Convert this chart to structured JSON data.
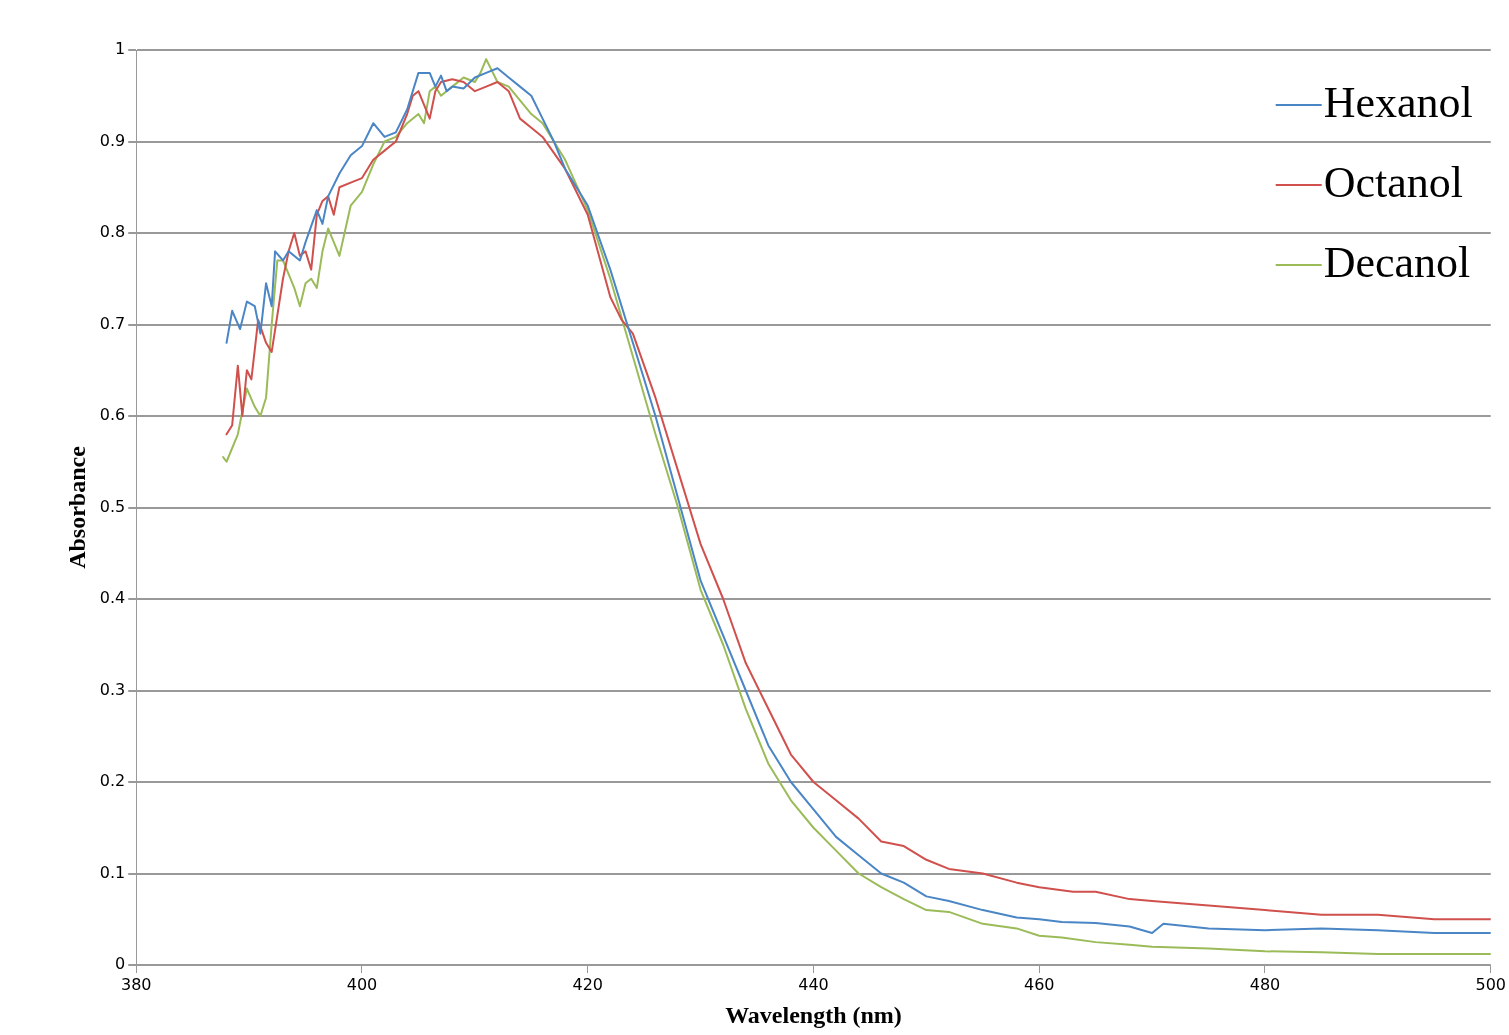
{
  "chart_data": {
    "type": "line",
    "xlabel": "Wavelength (nm)",
    "ylabel": "Absorbance",
    "xlim": [
      380,
      500
    ],
    "xticks": [
      380,
      400,
      420,
      440,
      460,
      480,
      500
    ],
    "ylim": [
      0,
      1
    ],
    "yticks": [
      0,
      0.1,
      0.2,
      0.3,
      0.4,
      0.5,
      0.6,
      0.7,
      0.8,
      0.9,
      1
    ],
    "grid": "y",
    "legend": "top right",
    "marker": "none",
    "line_style": "solid",
    "series": [
      {
        "name": "Hexanol",
        "color": "#4a86c5",
        "x": [
          388,
          388.5,
          389.2,
          389.8,
          390.5,
          391,
          391.5,
          392,
          392.3,
          393,
          393.5,
          394.5,
          395,
          396,
          396.5,
          397,
          398,
          399,
          400,
          401,
          402,
          403,
          404,
          405,
          406,
          406.5,
          407,
          407.5,
          408,
          409,
          410,
          411,
          412,
          413,
          414,
          415,
          416,
          417,
          418,
          420,
          422,
          424,
          426,
          428,
          430,
          432,
          434,
          436,
          438,
          440,
          442,
          444,
          446,
          448,
          450,
          452,
          455,
          458,
          460,
          462,
          465,
          468,
          470,
          471,
          475,
          480,
          485,
          490,
          495,
          500
        ],
        "values": [
          0.68,
          0.715,
          0.695,
          0.725,
          0.72,
          0.69,
          0.745,
          0.72,
          0.78,
          0.77,
          0.78,
          0.77,
          0.79,
          0.825,
          0.81,
          0.84,
          0.865,
          0.885,
          0.895,
          0.92,
          0.905,
          0.91,
          0.935,
          0.975,
          0.975,
          0.96,
          0.972,
          0.955,
          0.96,
          0.958,
          0.97,
          0.975,
          0.98,
          0.97,
          0.96,
          0.95,
          0.925,
          0.9,
          0.87,
          0.83,
          0.76,
          0.68,
          0.6,
          0.51,
          0.42,
          0.36,
          0.3,
          0.24,
          0.2,
          0.17,
          0.14,
          0.12,
          0.1,
          0.09,
          0.075,
          0.07,
          0.06,
          0.052,
          0.05,
          0.047,
          0.046,
          0.042,
          0.035,
          0.045,
          0.04,
          0.038,
          0.04,
          0.038,
          0.035,
          0.035
        ]
      },
      {
        "name": "Octanol",
        "color": "#d0504d",
        "x": [
          388,
          388.5,
          389,
          389.4,
          389.8,
          390.2,
          390.8,
          391.5,
          392,
          392.5,
          393,
          393.5,
          394,
          394.5,
          395,
          395.5,
          396,
          396.5,
          397,
          397.5,
          398,
          399,
          400,
          401,
          402,
          403,
          404,
          404.5,
          405,
          405.5,
          406,
          406.5,
          407,
          408,
          409,
          410,
          411,
          412,
          413,
          414,
          415,
          416,
          418,
          420,
          422,
          423,
          424,
          426,
          428,
          430,
          432,
          434,
          436,
          438,
          440,
          442,
          444,
          446,
          448,
          450,
          452,
          455,
          458,
          460,
          463,
          465,
          468,
          470,
          475,
          480,
          485,
          490,
          495,
          500
        ],
        "values": [
          0.58,
          0.59,
          0.655,
          0.6,
          0.65,
          0.64,
          0.705,
          0.68,
          0.67,
          0.71,
          0.75,
          0.78,
          0.8,
          0.775,
          0.78,
          0.76,
          0.82,
          0.835,
          0.84,
          0.82,
          0.85,
          0.855,
          0.86,
          0.88,
          0.89,
          0.9,
          0.93,
          0.95,
          0.955,
          0.94,
          0.925,
          0.955,
          0.965,
          0.968,
          0.965,
          0.955,
          0.96,
          0.965,
          0.955,
          0.925,
          0.915,
          0.905,
          0.87,
          0.82,
          0.73,
          0.705,
          0.69,
          0.62,
          0.54,
          0.46,
          0.4,
          0.33,
          0.28,
          0.23,
          0.2,
          0.18,
          0.16,
          0.135,
          0.13,
          0.115,
          0.105,
          0.1,
          0.09,
          0.085,
          0.08,
          0.08,
          0.072,
          0.07,
          0.065,
          0.06,
          0.055,
          0.055,
          0.05,
          0.05
        ]
      },
      {
        "name": "Decanol",
        "color": "#9bbb59",
        "x": [
          387.7,
          388,
          389,
          389.8,
          390.5,
          391,
          391.5,
          392,
          392.5,
          393,
          394,
          394.5,
          395,
          395.5,
          396,
          396.5,
          397,
          397.5,
          398,
          399,
          400,
          401,
          402,
          403,
          404,
          405,
          405.5,
          406,
          406.5,
          407,
          408,
          409,
          410,
          410.5,
          411,
          412,
          413,
          414,
          415,
          416,
          418,
          420,
          422,
          424,
          426,
          428,
          430,
          432,
          434,
          436,
          438,
          440,
          442,
          444,
          446,
          448,
          450,
          452,
          455,
          458,
          460,
          462,
          465,
          468,
          470,
          475,
          480,
          485,
          490,
          495,
          500
        ],
        "values": [
          0.555,
          0.55,
          0.58,
          0.63,
          0.61,
          0.6,
          0.62,
          0.7,
          0.77,
          0.77,
          0.74,
          0.72,
          0.745,
          0.75,
          0.74,
          0.78,
          0.805,
          0.79,
          0.775,
          0.83,
          0.845,
          0.875,
          0.9,
          0.905,
          0.92,
          0.93,
          0.92,
          0.955,
          0.96,
          0.95,
          0.96,
          0.97,
          0.965,
          0.975,
          0.99,
          0.965,
          0.96,
          0.945,
          0.93,
          0.92,
          0.88,
          0.825,
          0.75,
          0.665,
          0.58,
          0.5,
          0.41,
          0.35,
          0.28,
          0.22,
          0.18,
          0.15,
          0.125,
          0.1,
          0.085,
          0.072,
          0.06,
          0.058,
          0.045,
          0.04,
          0.032,
          0.03,
          0.025,
          0.022,
          0.02,
          0.018,
          0.015,
          0.014,
          0.012,
          0.012,
          0.012
        ]
      }
    ]
  }
}
